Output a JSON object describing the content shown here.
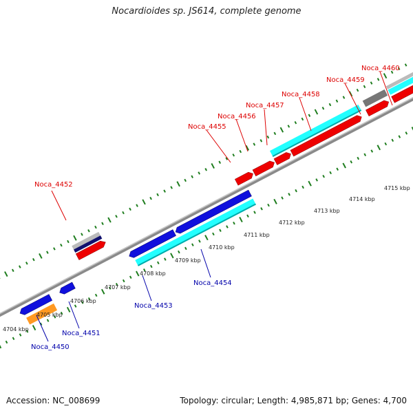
{
  "header": {
    "title": "Nocardioides sp. JS614, complete genome"
  },
  "footer": {
    "accession": "Accession: NC_008699",
    "topology": "Topology: circular; Length: 4,985,871 bp; Genes: 4,700"
  },
  "colors": {
    "forward_label": "#dd0000",
    "reverse_label": "#0000aa",
    "tick": "#1e7d1e",
    "backbone": "#8a8a8a"
  },
  "scale_ticks": [
    "4704 kbp",
    "4705 kbp",
    "4706 kbp",
    "4707 kbp",
    "4708 kbp",
    "4709 kbp",
    "4710 kbp",
    "4711 kbp",
    "4712 kbp",
    "4713 kbp",
    "4714 kbp",
    "4715 kbp"
  ],
  "forward_labels": [
    "Noca_4452",
    "Noca_4455",
    "Noca_4456",
    "Noca_4457",
    "Noca_4458",
    "Noca_4459",
    "Noca_4460"
  ],
  "reverse_labels": [
    "Noca_4450",
    "Noca_4451",
    "Noca_4453",
    "Noca_4454"
  ]
}
